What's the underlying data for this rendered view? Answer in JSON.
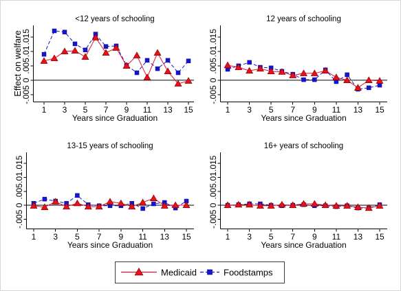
{
  "legend": {
    "position": "bottom",
    "items": [
      {
        "label": "Medicaid",
        "color": "#e8101a",
        "outline": "#8a0000",
        "marker": "triangle",
        "line_style": "solid"
      },
      {
        "label": "Foodstamps",
        "color": "#1414d2",
        "outline": "#0a0a80",
        "marker": "square",
        "line_style": "dashed"
      }
    ]
  },
  "chart_data": [
    {
      "type": "line",
      "title": "<12 years of schooling",
      "xlabel": "Years since Graduation",
      "ylabel": "Effect on welfare",
      "x": [
        1,
        2,
        3,
        4,
        5,
        6,
        7,
        8,
        9,
        10,
        11,
        12,
        13,
        14,
        15
      ],
      "xlim": [
        1,
        15
      ],
      "x_ticks": [
        1,
        3,
        5,
        7,
        9,
        11,
        13,
        15
      ],
      "ylim": [
        -0.0075,
        0.019
      ],
      "y_ticks": [
        -0.005,
        0,
        0.005,
        0.01,
        0.015
      ],
      "y_tick_labels": [
        "-.005",
        "0",
        ".005",
        ".01",
        ".015"
      ],
      "grid": false,
      "reference_line_y": 0,
      "series": [
        {
          "name": "Medicaid",
          "values": [
            0.0067,
            0.0076,
            0.01,
            0.0102,
            0.0081,
            0.0148,
            0.0095,
            0.0112,
            0.005,
            0.0086,
            0.001,
            0.0095,
            0.0031,
            -0.0012,
            -0.0002
          ]
        },
        {
          "name": "Foodstamps",
          "values": [
            0.009,
            0.0171,
            0.0167,
            0.0126,
            0.0105,
            0.016,
            0.0117,
            0.0119,
            0.0052,
            0.0026,
            0.0069,
            0.004,
            0.0069,
            0.0026,
            0.0067
          ]
        }
      ]
    },
    {
      "type": "line",
      "title": "12 years of schooling",
      "xlabel": "Years since Graduation",
      "x": [
        1,
        2,
        3,
        4,
        5,
        6,
        7,
        8,
        9,
        10,
        11,
        12,
        13,
        14,
        15
      ],
      "xlim": [
        1,
        15
      ],
      "x_ticks": [
        1,
        3,
        5,
        7,
        9,
        11,
        13,
        15
      ],
      "ylim": [
        -0.0075,
        0.019
      ],
      "y_ticks": [
        -0.005,
        0,
        0.005,
        0.01,
        0.015
      ],
      "y_tick_labels": [
        "-.005",
        "0",
        ".005",
        ".01",
        ".015"
      ],
      "grid": false,
      "reference_line_y": 0,
      "series": [
        {
          "name": "Medicaid",
          "values": [
            0.0052,
            0.0045,
            0.0033,
            0.004,
            0.0031,
            0.0029,
            0.0017,
            0.0024,
            0.0024,
            0.0033,
            0.001,
            0.0,
            -0.0026,
            0.0,
            -0.0002
          ]
        },
        {
          "name": "Foodstamps",
          "values": [
            0.0038,
            0.005,
            0.0062,
            0.0045,
            0.0043,
            0.0031,
            0.0021,
            0.0002,
            0.0002,
            0.0036,
            -0.0005,
            0.0019,
            -0.0031,
            -0.0026,
            -0.0017
          ]
        }
      ]
    },
    {
      "type": "line",
      "title": "13-15 years of schooling",
      "xlabel": "Years since Graduation",
      "x": [
        1,
        2,
        3,
        4,
        5,
        6,
        7,
        8,
        9,
        10,
        11,
        12,
        13,
        14,
        15
      ],
      "xlim": [
        1,
        15
      ],
      "x_ticks": [
        1,
        3,
        5,
        7,
        9,
        11,
        13,
        15
      ],
      "ylim": [
        -0.0085,
        0.019
      ],
      "y_ticks": [
        -0.005,
        0,
        0.005,
        0.01,
        0.015
      ],
      "y_tick_labels": [
        "-.005",
        "0",
        ".005",
        ".01",
        ".015"
      ],
      "grid": false,
      "reference_line_y": 0,
      "series": [
        {
          "name": "Medicaid",
          "values": [
            -0.0002,
            -0.0007,
            0.0013,
            -0.0005,
            0.0007,
            -0.0005,
            -0.0005,
            0.0013,
            0.0007,
            -0.0005,
            0.001,
            0.0025,
            -0.0002,
            0.0,
            0.0
          ]
        },
        {
          "name": "Foodstamps",
          "values": [
            0.0007,
            0.0022,
            0.0015,
            0.0007,
            0.0035,
            0.0002,
            -0.0002,
            -0.0002,
            -0.0002,
            0.0007,
            -0.0012,
            0.0005,
            0.001,
            -0.001,
            0.0015
          ]
        }
      ]
    },
    {
      "type": "line",
      "title": "16+ years of schooling",
      "xlabel": "Years since Graduation",
      "x": [
        1,
        2,
        3,
        4,
        5,
        6,
        7,
        8,
        9,
        10,
        11,
        12,
        13,
        14,
        15
      ],
      "xlim": [
        1,
        15
      ],
      "x_ticks": [
        1,
        3,
        5,
        7,
        9,
        11,
        13,
        15
      ],
      "ylim": [
        -0.0085,
        0.019
      ],
      "y_ticks": [
        -0.005,
        0,
        0.005,
        0.01,
        0.015
      ],
      "y_tick_labels": [
        "-.005",
        "0",
        ".005",
        ".01",
        ".015"
      ],
      "grid": false,
      "reference_line_y": 0,
      "series": [
        {
          "name": "Medicaid",
          "values": [
            0.0,
            0.0002,
            0.0002,
            -0.0002,
            -0.0002,
            0.0002,
            0.0,
            0.0005,
            0.0005,
            0.0,
            -0.0002,
            -0.0002,
            -0.0007,
            -0.001,
            -0.0002
          ]
        },
        {
          "name": "Foodstamps",
          "values": [
            0.0,
            0.0002,
            0.0005,
            0.0005,
            0.0,
            -0.0002,
            0.0,
            0.0002,
            -0.0002,
            -0.0002,
            -0.0005,
            -0.0002,
            -0.001,
            -0.001,
            0.0002
          ]
        }
      ]
    }
  ]
}
